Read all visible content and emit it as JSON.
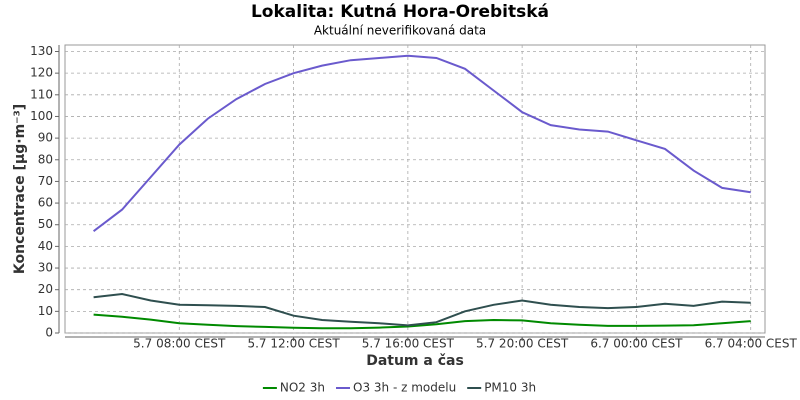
{
  "chart_data": {
    "type": "line",
    "title": "Lokalita: Kutná Hora-Orebitská",
    "subtitle": "Aktuální neverifikovaná data",
    "x_label": "Datum a čas",
    "y_label": "Koncentrace [µg·m⁻³]",
    "x": [
      5,
      6,
      7,
      8,
      9,
      10,
      11,
      12,
      13,
      14,
      15,
      16,
      17,
      18,
      19,
      20,
      21,
      22,
      23,
      24,
      25,
      26,
      27,
      28
    ],
    "series": [
      {
        "name": "NO2 3h",
        "color": "#008a00",
        "values": [
          8.5,
          7.5,
          6.2,
          4.5,
          3.8,
          3.2,
          2.8,
          2.4,
          2.2,
          2.2,
          2.5,
          3,
          4,
          5.5,
          6,
          5.8,
          4.5,
          3.8,
          3.3,
          3.3,
          3.4,
          3.6,
          4.5,
          5.5
        ]
      },
      {
        "name": "O3 3h - z modelu",
        "color": "#6a5acd",
        "values": [
          47,
          57,
          72,
          87,
          99,
          108,
          115,
          120,
          123.5,
          126,
          127,
          128,
          127,
          122,
          112,
          102,
          96,
          94,
          93,
          89,
          85,
          75,
          67,
          65
        ]
      },
      {
        "name": "PM10 3h",
        "color": "#2f4f4f",
        "values": [
          16.5,
          18,
          15,
          13,
          12.8,
          12.5,
          12,
          8,
          6,
          5.2,
          4.5,
          3.5,
          5,
          10,
          13,
          15,
          13,
          12,
          11.5,
          12,
          13.5,
          12.5,
          14.5,
          14
        ]
      }
    ],
    "xlim": [
      4,
      28.5
    ],
    "xticks": [
      {
        "value": 8,
        "label": "5.7 08:00 CEST"
      },
      {
        "value": 12,
        "label": "5.7 12:00 CEST"
      },
      {
        "value": 16,
        "label": "5.7 16:00 CEST"
      },
      {
        "value": 20,
        "label": "5.7 20:00 CEST"
      },
      {
        "value": 24,
        "label": "6.7 00:00 CEST"
      },
      {
        "value": 28,
        "label": "6.7 04:00 CEST"
      }
    ],
    "ylim": [
      0,
      133
    ],
    "yticks": [
      0,
      10,
      20,
      30,
      40,
      50,
      60,
      70,
      80,
      90,
      100,
      110,
      120,
      130
    ],
    "grid": true,
    "legend": "bottom"
  }
}
